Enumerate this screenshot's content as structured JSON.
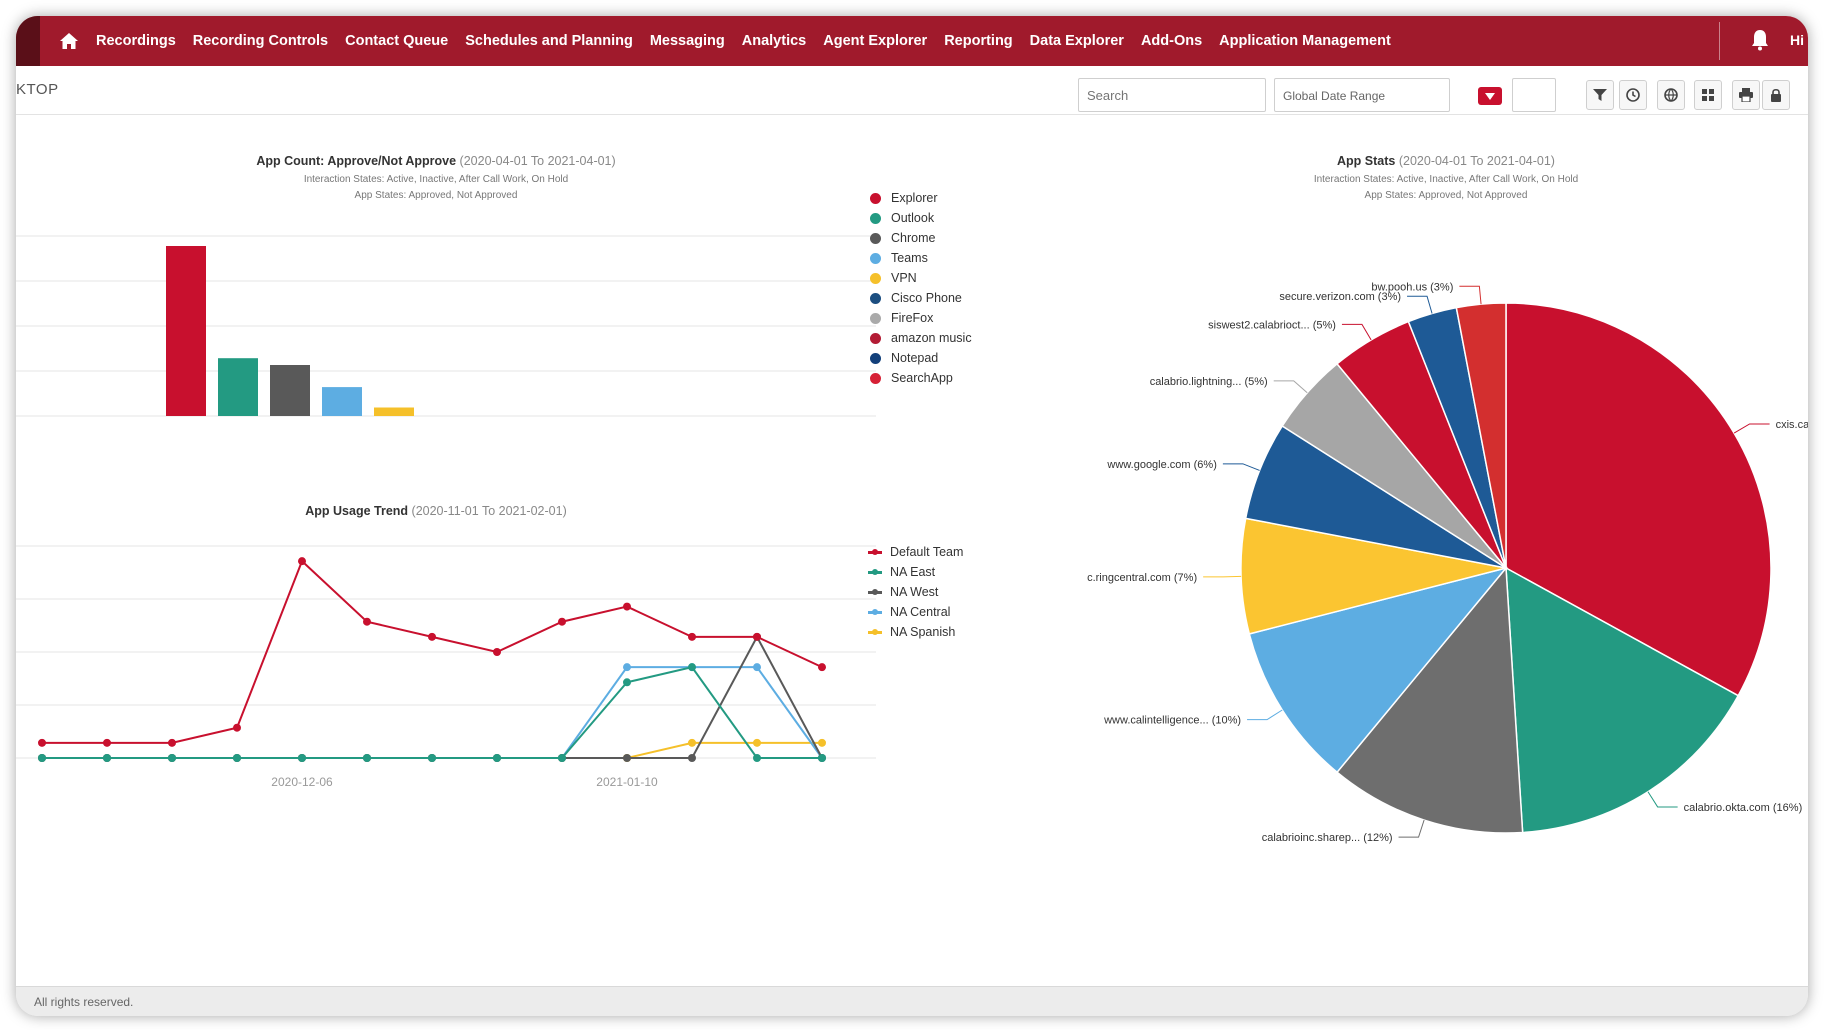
{
  "nav": {
    "items": [
      "Recordings",
      "Recording Controls",
      "Contact Queue",
      "Schedules and Planning",
      "Messaging",
      "Analytics",
      "Agent Explorer",
      "Reporting",
      "Data Explorer",
      "Add-Ons",
      "Application Management"
    ],
    "tail": "Hi"
  },
  "subbar": {
    "title": "KTOP",
    "search_placeholder": "Search",
    "date_range": "Global Date Range"
  },
  "colors": {
    "nav_bg": "#a01a2c",
    "accent": "#c8102e"
  },
  "bar_panel": {
    "title": "App Count: Approve/Not Approve",
    "range": "(2020-04-01 To 2021-04-01)",
    "sub1": "Interaction States: Active, Inactive, After Call Work, On Hold",
    "sub2": "App States: Approved, Not Approved"
  },
  "line_panel": {
    "title": "App Usage Trend",
    "range": "(2020-11-01 To 2021-02-01)"
  },
  "pie_panel": {
    "title": "App Stats",
    "range": "(2020-04-01 To 2021-04-01)",
    "sub1": "Interaction States: Active, Inactive, After Call Work, On Hold",
    "sub2": "App States: Approved, Not Approved"
  },
  "chart_data": [
    {
      "type": "bar",
      "categories": [
        "Explorer",
        "Outlook",
        "Chrome",
        "Teams",
        "VPN"
      ],
      "values": [
        100,
        34,
        30,
        17,
        5
      ],
      "legend": [
        {
          "name": "Explorer",
          "color": "#c8102e"
        },
        {
          "name": "Outlook",
          "color": "#239a82"
        },
        {
          "name": "Chrome",
          "color": "#595959"
        },
        {
          "name": "Teams",
          "color": "#5dade2"
        },
        {
          "name": "VPN",
          "color": "#f5c02a"
        },
        {
          "name": "Cisco Phone",
          "color": "#1c4e80"
        },
        {
          "name": "FireFox",
          "color": "#aaaaaa"
        },
        {
          "name": "amazon music",
          "color": "#b31b34"
        },
        {
          "name": "Notepad",
          "color": "#13407a"
        },
        {
          "name": "SearchApp",
          "color": "#d62035"
        }
      ],
      "legend_position": "right"
    },
    {
      "type": "line",
      "x": [
        "2020-11-11",
        "2020-11-18",
        "2020-11-25",
        "2020-12-02",
        "2020-12-09",
        "2020-12-16",
        "2020-12-23",
        "2020-12-30",
        "2021-01-06",
        "2021-01-13",
        "2021-01-20",
        "2021-01-27",
        "2021-02-03"
      ],
      "x_tick_labels": [
        "2020-12-06",
        "2021-01-10"
      ],
      "series": [
        {
          "name": "Default Team",
          "color": "#c8102e",
          "values": [
            1,
            1,
            1,
            2,
            13,
            9,
            8,
            7,
            9,
            10,
            8,
            8,
            6
          ]
        },
        {
          "name": "NA East",
          "color": "#239a82",
          "values": [
            0,
            0,
            0,
            0,
            0,
            0,
            0,
            0,
            0,
            5,
            6,
            0,
            0
          ]
        },
        {
          "name": "NA West",
          "color": "#595959",
          "values": [
            0,
            0,
            0,
            0,
            0,
            0,
            0,
            0,
            0,
            0,
            0,
            8,
            0
          ]
        },
        {
          "name": "NA Central",
          "color": "#5dade2",
          "values": [
            0,
            0,
            0,
            0,
            0,
            0,
            0,
            0,
            0,
            6,
            6,
            6,
            0
          ]
        },
        {
          "name": "NA Spanish",
          "color": "#f5c02a",
          "values": [
            0,
            0,
            0,
            0,
            0,
            0,
            0,
            0,
            0,
            0,
            1,
            1,
            1
          ]
        }
      ],
      "legend_position": "right"
    },
    {
      "type": "pie",
      "labels": [
        "cxis.ca",
        "calabrio.okta.com (16%)",
        "calabrioinc.sharep... (12%)",
        "www.calintelligence... (10%)",
        "c.ringcentral.com (7%)",
        "www.google.com (6%)",
        "calabrio.lightning... (5%)",
        "siswest2.calabrioct... (5%)",
        "secure.verizon.com (3%)",
        "bw.pooh.us (3%)"
      ],
      "values": [
        33,
        16,
        12,
        10,
        7,
        6,
        5,
        5,
        3,
        3
      ],
      "colors": [
        "#c8102e",
        "#239a82",
        "#6e6e6e",
        "#5dade2",
        "#fbc531",
        "#1e5a96",
        "#a6a6a6",
        "#c8102e",
        "#1e5a96",
        "#d32f2f"
      ]
    }
  ],
  "footer": {
    "text": "All rights reserved."
  }
}
